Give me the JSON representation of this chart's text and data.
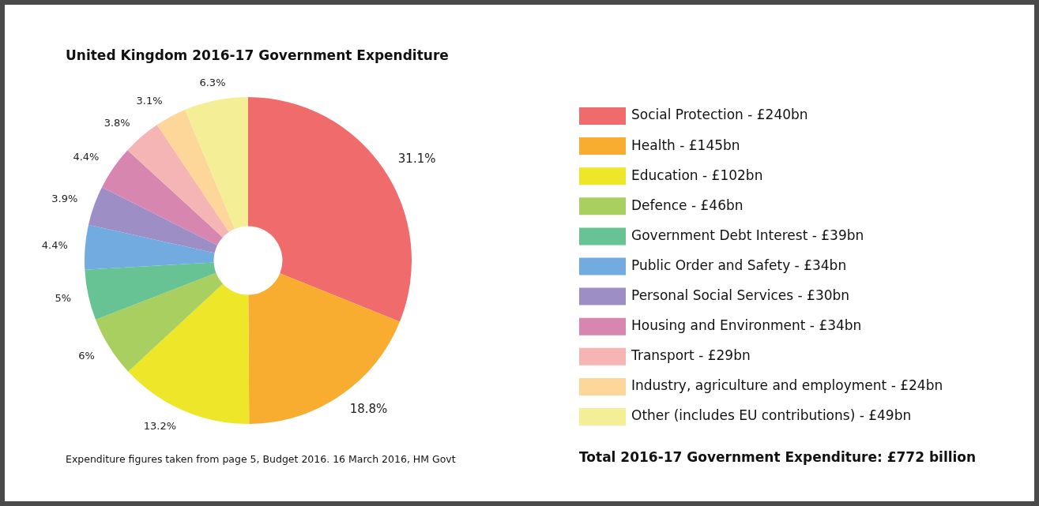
{
  "chart_data": {
    "type": "donut",
    "title": "United Kingdom 2016-17 Government Expenditure",
    "categories": [
      "Social Protection - £240bn",
      "Health - £145bn",
      "Education - £102bn",
      "Defence - £46bn",
      "Government Debt Interest - £39bn",
      "Public Order and Safety - £34bn",
      "Personal Social Services - £30bn",
      "Housing and Environment - £34bn",
      "Transport - £29bn",
      "Industry, agriculture and employment - £24bn",
      "Other (includes EU contributions) - £49bn"
    ],
    "values": [
      31.1,
      18.8,
      13.2,
      6,
      5,
      4.4,
      3.9,
      4.4,
      3.8,
      3.1,
      6.3
    ],
    "value_labels": [
      "31.1%",
      "18.8%",
      "13.2%",
      "6%",
      "5%",
      "4.4%",
      "3.9%",
      "4.4%",
      "3.8%",
      "3.1%",
      "6.3%"
    ],
    "colors": [
      "#f06b6b",
      "#f9ad30",
      "#ede629",
      "#a8cf5f",
      "#67c294",
      "#72abdf",
      "#9d8ec6",
      "#d786b0",
      "#f6b5b5",
      "#fdd69a",
      "#f4ee96"
    ],
    "legend": "right",
    "annotations": [
      "Expenditure figures taken from page 5, Budget 2016. 16 March 2016, HM Govt",
      "Total 2016-17 Government Expenditure: £772 billion"
    ]
  }
}
